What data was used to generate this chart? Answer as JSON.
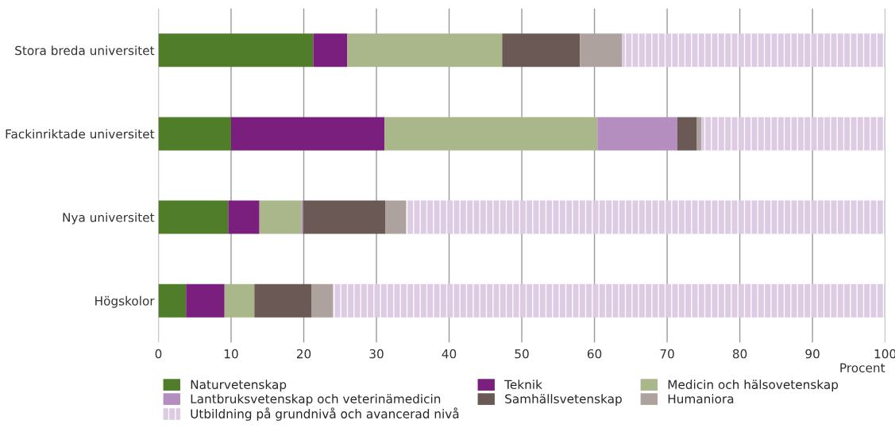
{
  "chart_data": {
    "type": "bar",
    "orientation": "horizontal",
    "stacked": true,
    "xlabel": "Procent",
    "categories": [
      "Stora breda universitet",
      "Fackinriktade universitet",
      "Nya universitet",
      "Högskolor"
    ],
    "series": [
      {
        "name": "Naturvetenskap",
        "color": "#507d2a",
        "values": [
          21.3,
          10.0,
          9.6,
          3.8
        ]
      },
      {
        "name": "Teknik",
        "color": "#7b1f7f",
        "values": [
          4.7,
          21.1,
          4.3,
          5.3
        ]
      },
      {
        "name": "Medicin och hälsovetenskap",
        "color": "#a9b78b",
        "values": [
          21.3,
          29.3,
          5.8,
          4.1
        ]
      },
      {
        "name": "Lantbruksvetenskap och veterinämedicin",
        "color": "#b48ebf",
        "values": [
          0,
          11.0,
          0.2,
          0
        ]
      },
      {
        "name": "Samhällsvetenskap",
        "color": "#6b5955",
        "values": [
          10.7,
          2.7,
          11.3,
          7.9
        ]
      },
      {
        "name": "Humaniora",
        "color": "#ada29d",
        "values": [
          5.8,
          0.6,
          2.9,
          2.9
        ]
      },
      {
        "name": "Utbildning på grundnivå och avancerad nivå",
        "color": "#dccbe3",
        "values": [
          36.2,
          25.3,
          65.9,
          76.0
        ]
      }
    ],
    "xlim": [
      0,
      100
    ],
    "xticks": [
      0,
      10,
      20,
      30,
      40,
      50,
      60,
      70,
      80,
      90,
      100
    ],
    "grid": "x",
    "legend": "bottom"
  }
}
